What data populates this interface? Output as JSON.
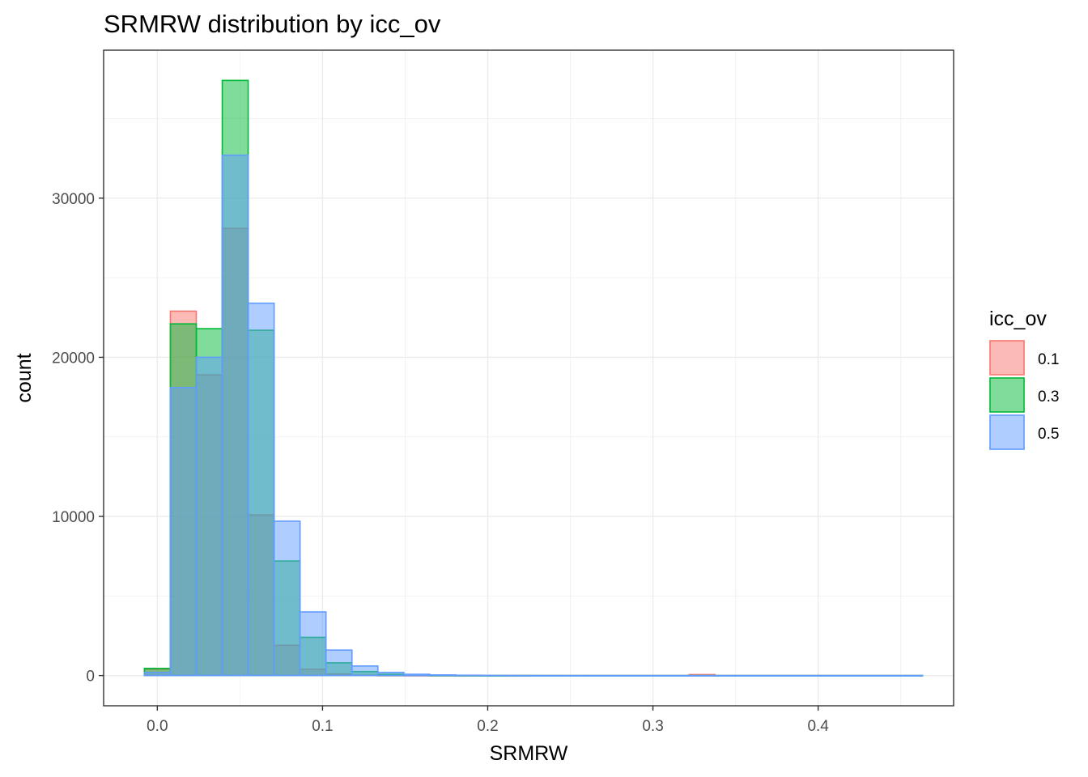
{
  "chart_data": {
    "type": "histogram",
    "title": "SRMRW distribution by icc_ov",
    "xlabel": "SRMRW",
    "ylabel": "count",
    "xlim": [
      -0.0325,
      0.482
    ],
    "ylim": [
      -1900,
      39300
    ],
    "x_ticks": [
      0.0,
      0.1,
      0.2,
      0.3,
      0.4
    ],
    "x_tick_labels": [
      "0.0",
      "0.1",
      "0.2",
      "0.3",
      "0.4"
    ],
    "y_ticks": [
      0,
      10000,
      20000,
      30000
    ],
    "y_tick_labels": [
      "0",
      "10000",
      "20000",
      "30000"
    ],
    "grid": true,
    "legend": {
      "title": "icc_ov",
      "position": "right"
    },
    "bin_edges": [
      -0.0078,
      0.0079,
      0.0236,
      0.0393,
      0.055,
      0.0707,
      0.0864,
      0.1021,
      0.1178,
      0.1335,
      0.1492,
      0.1649,
      0.1806,
      0.1963,
      0.212,
      0.2277,
      0.2434,
      0.2591,
      0.2748,
      0.2905,
      0.3062,
      0.3219,
      0.3376,
      0.3533,
      0.369,
      0.3847,
      0.4004,
      0.4161,
      0.4318,
      0.4475,
      0.4632
    ],
    "series": [
      {
        "name": "0.1",
        "color": "#F8766D",
        "fill": "#F8766D",
        "values": [
          400,
          22900,
          18900,
          28100,
          10100,
          1900,
          400,
          100,
          30,
          10,
          5,
          3,
          2,
          0,
          0,
          0,
          0,
          0,
          0,
          0,
          0,
          60,
          0,
          0,
          0,
          0,
          0,
          0,
          0,
          0
        ]
      },
      {
        "name": "0.3",
        "color": "#00BA38",
        "fill": "#00BA38",
        "values": [
          450,
          22100,
          21800,
          37400,
          21700,
          7200,
          2400,
          800,
          250,
          80,
          30,
          10,
          5,
          0,
          0,
          0,
          0,
          0,
          0,
          0,
          0,
          0,
          0,
          0,
          0,
          0,
          0,
          0,
          0,
          0
        ]
      },
      {
        "name": "0.5",
        "color": "#619CFF",
        "fill": "#619CFF",
        "values": [
          200,
          18100,
          20000,
          32700,
          23400,
          9700,
          4000,
          1600,
          600,
          200,
          80,
          40,
          20,
          10,
          5,
          3,
          2,
          1,
          1,
          1,
          1,
          1,
          1,
          1,
          1,
          1,
          1,
          1,
          1,
          1
        ]
      }
    ]
  }
}
